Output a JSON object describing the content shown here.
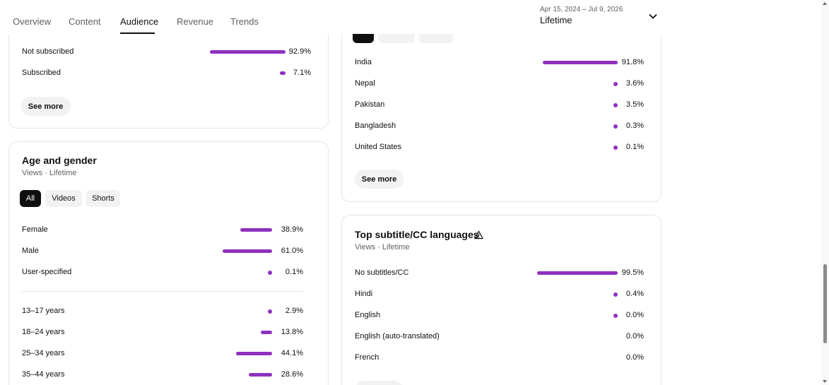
{
  "tabs": [
    {
      "label": "Overview"
    },
    {
      "label": "Content"
    },
    {
      "label": "Audience"
    },
    {
      "label": "Revenue"
    },
    {
      "label": "Trends"
    }
  ],
  "date_range": {
    "range": "Apr 15, 2024 – Jul 9, 2026",
    "period": "Lifetime"
  },
  "subscription": {
    "rows": [
      {
        "label": "Not subscribed",
        "value": "92.9%",
        "fraction": 0.929
      },
      {
        "label": "Subscribed",
        "value": "7.1%",
        "fraction": 0.071
      }
    ],
    "see_more": "See more"
  },
  "age_gender": {
    "title": "Age and gender",
    "subtitle": "Views · Lifetime",
    "chips": [
      "All",
      "Videos",
      "Shorts"
    ],
    "gender_rows": [
      {
        "label": "Female",
        "value": "38.9%",
        "fraction": 0.389
      },
      {
        "label": "Male",
        "value": "61.0%",
        "fraction": 0.61
      },
      {
        "label": "User-specified",
        "value": "0.1%",
        "fraction": 0.001
      }
    ],
    "age_rows": [
      {
        "label": "13–17 years",
        "value": "2.9%",
        "fraction": 0.029
      },
      {
        "label": "18–24 years",
        "value": "13.8%",
        "fraction": 0.138
      },
      {
        "label": "25–34 years",
        "value": "44.1%",
        "fraction": 0.441
      },
      {
        "label": "35–44 years",
        "value": "28.6%",
        "fraction": 0.286
      }
    ]
  },
  "geography": {
    "rows": [
      {
        "label": "India",
        "value": "91.8%",
        "fraction": 0.918
      },
      {
        "label": "Nepal",
        "value": "3.6%",
        "fraction": 0.036
      },
      {
        "label": "Pakistan",
        "value": "3.5%",
        "fraction": 0.035
      },
      {
        "label": "Bangladesh",
        "value": "0.3%",
        "fraction": 0.003
      },
      {
        "label": "United States",
        "value": "0.1%",
        "fraction": 0.001
      }
    ],
    "see_more": "See more"
  },
  "subtitles": {
    "title": "Top subtitle/CC languages",
    "subtitle": "Views · Lifetime",
    "rows": [
      {
        "label": "No subtitles/CC",
        "value": "99.5%",
        "fraction": 0.995
      },
      {
        "label": "Hindi",
        "value": "0.4%",
        "fraction": 0.004
      },
      {
        "label": "English",
        "value": "0.0%",
        "fraction": 0.0004
      },
      {
        "label": "English (auto-translated)",
        "value": "0.0%",
        "fraction": 0
      },
      {
        "label": "French",
        "value": "0.0%",
        "fraction": 0
      }
    ]
  },
  "colors": {
    "bar": "#8e30be",
    "text": "#0f0f0f",
    "muted": "#606060"
  }
}
